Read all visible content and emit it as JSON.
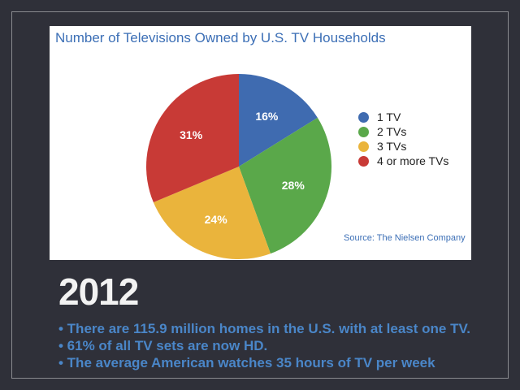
{
  "slide": {
    "year": "2012",
    "bullets": [
      "• There are 115.9 million homes in the U.S. with at least one TV.",
      "• 61% of all TV sets are now HD.",
      "• The average American watches 35 hours of TV per week"
    ]
  },
  "chart_data": {
    "type": "pie",
    "title": "Number of Televisions Owned by U.S. TV Households",
    "source": "Source: The Nielsen Company",
    "legend_position": "right",
    "slices": [
      {
        "label": "1 TV",
        "value": 16,
        "display": "16%",
        "color": "#3f6bb0"
      },
      {
        "label": "2 TVs",
        "value": 28,
        "display": "28%",
        "color": "#5aa84a"
      },
      {
        "label": "3 TVs",
        "value": 24,
        "display": "24%",
        "color": "#eab43c"
      },
      {
        "label": "4 or more TVs",
        "value": 31,
        "display": "31%",
        "color": "#c83a36"
      }
    ]
  }
}
